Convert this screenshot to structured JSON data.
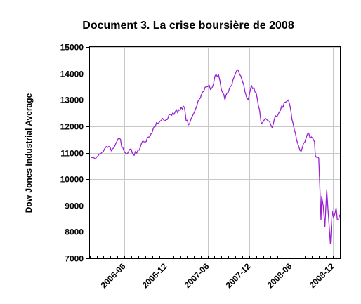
{
  "chart_data": {
    "type": "line",
    "title": "Document 3. La crise boursière de 2008",
    "xlabel": "",
    "ylabel": "Dow Jones Industrial Average",
    "ylim": [
      7000,
      15000
    ],
    "yticks": [
      7000,
      8000,
      9000,
      10000,
      11000,
      12000,
      13000,
      14000,
      15000
    ],
    "xlim": [
      "2006-01-01",
      "2009-01-01"
    ],
    "xticks": [
      "2006-06",
      "2006-12",
      "2007-06",
      "2007-12",
      "2008-06",
      "2008-12"
    ],
    "grid": true,
    "color": "#9b1fd3",
    "series": [
      {
        "x": [
          "2006-01-03",
          "2006-01-20",
          "2006-02-10",
          "2006-03-01",
          "2006-03-20",
          "2006-04-10",
          "2006-04-25",
          "2006-05-10",
          "2006-05-25",
          "2006-06-13",
          "2006-06-30",
          "2006-07-14",
          "2006-07-31",
          "2006-08-15",
          "2006-08-31",
          "2006-09-20",
          "2006-10-05",
          "2006-10-25",
          "2006-11-15",
          "2006-12-01",
          "2006-12-20",
          "2007-01-10",
          "2007-01-31",
          "2007-02-20",
          "2007-02-27",
          "2007-03-14",
          "2007-04-02",
          "2007-04-20",
          "2007-05-10",
          "2007-06-01",
          "2007-06-20",
          "2007-07-03",
          "2007-07-19",
          "2007-07-31",
          "2007-08-16",
          "2007-08-31",
          "2007-09-20",
          "2007-10-09",
          "2007-10-25",
          "2007-11-12",
          "2007-11-26",
          "2007-12-10",
          "2007-12-31",
          "2008-01-15",
          "2008-01-22",
          "2008-02-10",
          "2008-03-10",
          "2008-03-25",
          "2008-04-15",
          "2008-05-02",
          "2008-05-20",
          "2008-06-10",
          "2008-06-30",
          "2008-07-15",
          "2008-07-31",
          "2008-08-11",
          "2008-08-29",
          "2008-09-12",
          "2008-09-15",
          "2008-09-30",
          "2008-10-10",
          "2008-10-13",
          "2008-10-27",
          "2008-11-04",
          "2008-11-20",
          "2008-11-28",
          "2008-12-10",
          "2008-12-31"
        ],
        "y": [
          10850,
          10800,
          10950,
          11050,
          11200,
          11150,
          11350,
          11550,
          11200,
          10950,
          11150,
          10900,
          11100,
          11350,
          11400,
          11600,
          11900,
          12100,
          12300,
          12250,
          12450,
          12550,
          12600,
          12700,
          12200,
          12100,
          12500,
          12950,
          13300,
          13500,
          13450,
          13900,
          13950,
          13400,
          13000,
          13300,
          13750,
          14150,
          13900,
          13300,
          13000,
          13550,
          13260,
          12600,
          12100,
          12300,
          11950,
          12400,
          12600,
          12900,
          13000,
          12100,
          11350,
          11050,
          11400,
          11700,
          11600,
          11400,
          10900,
          10800,
          8450,
          9350,
          8200,
          9600,
          7550,
          8800,
          8700,
          8650
        ]
      }
    ]
  }
}
